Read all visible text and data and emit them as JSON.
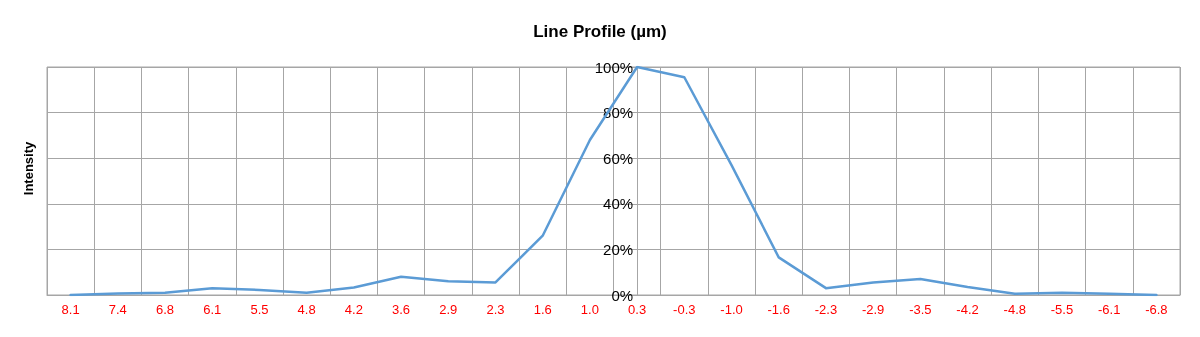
{
  "chart_data": {
    "type": "line",
    "title": "Line Profile (µm)",
    "ylabel": "Intensity",
    "categories": [
      "8.1",
      "7.4",
      "6.8",
      "6.1",
      "5.5",
      "4.8",
      "4.2",
      "3.6",
      "2.9",
      "2.3",
      "1.6",
      "1.0",
      "0.3",
      "-0.3",
      "-1.0",
      "-1.6",
      "-2.3",
      "-2.9",
      "-3.5",
      "-4.2",
      "-4.8",
      "-5.5",
      "-6.1",
      "-6.8"
    ],
    "series": [
      {
        "color": "#5b9bd5",
        "values": [
          0,
          0.7,
          1,
          3,
          2.2,
          1,
          3.3,
          8,
          6,
          5.5,
          26,
          68,
          100,
          95.5,
          57,
          16.5,
          3,
          5.5,
          7,
          3.5,
          0.5,
          1,
          0.5,
          0
        ]
      }
    ],
    "ylim": [
      0,
      100
    ],
    "yticks": [
      {
        "value": 0,
        "label": "0%"
      },
      {
        "value": 20,
        "label": "20%"
      },
      {
        "value": 40,
        "label": "40%"
      },
      {
        "value": 60,
        "label": "60%"
      },
      {
        "value": 80,
        "label": "80%"
      },
      {
        "value": 100,
        "label": "100%"
      }
    ],
    "grid": true,
    "marker": "none",
    "line_style": "solid"
  }
}
